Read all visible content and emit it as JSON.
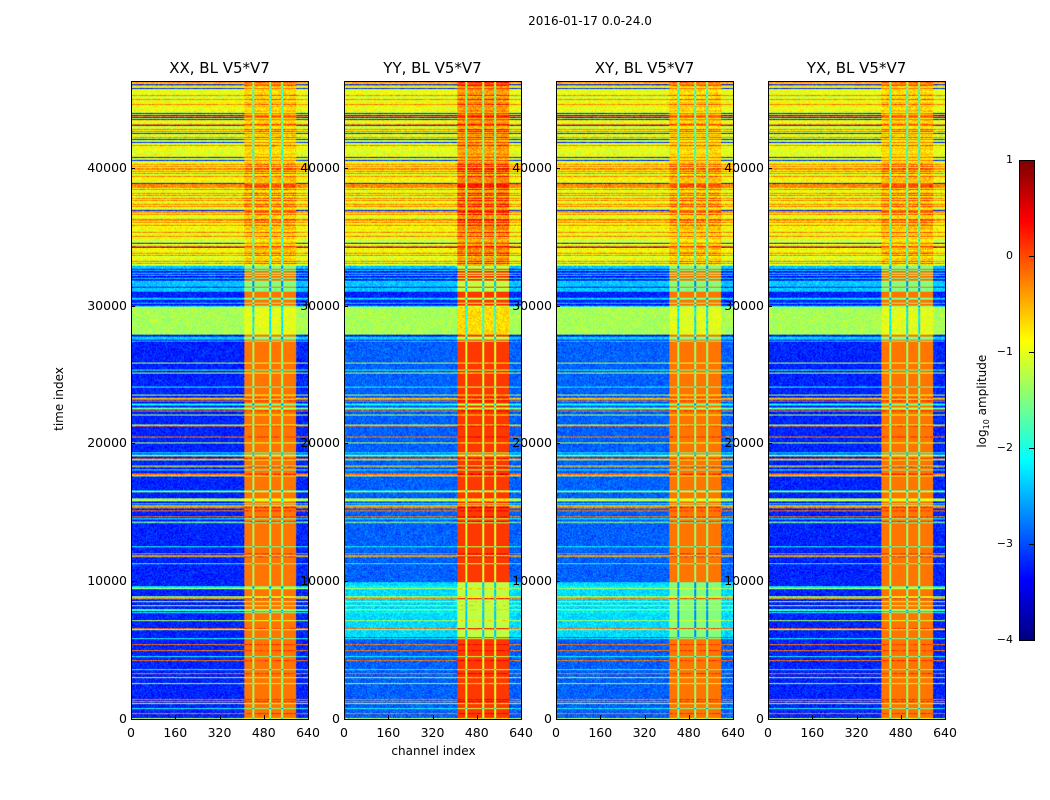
{
  "figure_title": "2016-01-17 0.0-24.0",
  "chart_data": [
    {
      "type": "heatmap",
      "title": "XX, BL V5*V7",
      "xlabel": "",
      "ylabel": "time index",
      "xlim": [
        0,
        640
      ],
      "ylim": [
        0,
        46300
      ],
      "seed": 11
    },
    {
      "type": "heatmap",
      "title": "YY, BL V5*V7",
      "xlabel": "channel index",
      "ylabel": "",
      "xlim": [
        0,
        640
      ],
      "ylim": [
        0,
        46300
      ],
      "seed": 23
    },
    {
      "type": "heatmap",
      "title": "XY, BL V5*V7",
      "xlabel": "",
      "ylabel": "",
      "xlim": [
        0,
        640
      ],
      "ylim": [
        0,
        46300
      ],
      "seed": 37
    },
    {
      "type": "heatmap",
      "title": "YX, BL V5*V7",
      "xlabel": "",
      "ylabel": "",
      "xlim": [
        0,
        640
      ],
      "ylim": [
        0,
        46300
      ],
      "seed": 51
    }
  ],
  "axes": {
    "x_ticks": [
      "0",
      "160",
      "320",
      "480",
      "640"
    ],
    "x_tick_values": [
      0,
      160,
      320,
      480,
      640
    ],
    "y_ticks": [
      "0",
      "10000",
      "20000",
      "30000",
      "40000"
    ],
    "y_tick_values": [
      0,
      10000,
      20000,
      30000,
      40000
    ]
  },
  "colorbar": {
    "label": "log10 amplitude",
    "label_main": "log",
    "label_sub": "10",
    "label_rest": " amplitude",
    "range": [
      -4,
      1
    ],
    "ticks": [
      "1",
      "0",
      "−1",
      "−2",
      "−3",
      "−4"
    ],
    "tick_values": [
      1,
      0,
      -1,
      -2,
      -3,
      -4
    ],
    "colormap": "jet"
  }
}
